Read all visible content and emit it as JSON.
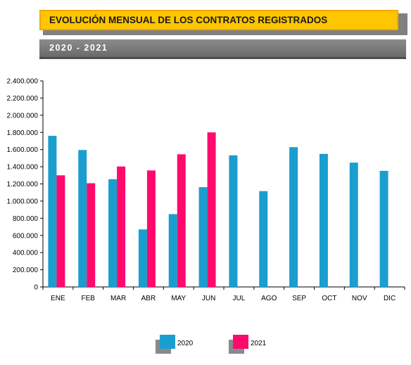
{
  "header": {
    "title": "EVOLUCIÓN MENSUAL DE LOS CONTRATOS REGISTRADOS",
    "subtitle": "2020 - 2021"
  },
  "chart_data": {
    "type": "bar",
    "categories": [
      "ENE",
      "FEB",
      "MAR",
      "ABR",
      "MAY",
      "JUN",
      "JUL",
      "AGO",
      "SEP",
      "OCT",
      "NOV",
      "DIC"
    ],
    "series": [
      {
        "name": "2020",
        "color": "#1a9ecf",
        "values": [
          1760000,
          1595000,
          1255000,
          670000,
          848000,
          1162000,
          1533000,
          1116000,
          1628000,
          1550000,
          1448000,
          1352000
        ]
      },
      {
        "name": "2021",
        "color": "#ff0a6c",
        "values": [
          1300000,
          1208000,
          1403000,
          1357000,
          1545000,
          1800000,
          null,
          null,
          null,
          null,
          null,
          null
        ]
      }
    ],
    "ylim": [
      0,
      2400000
    ],
    "yticks": [
      "0",
      "200.000",
      "400.000",
      "600.000",
      "800.000",
      "1.000.000",
      "1.200.000",
      "1.400.000",
      "1.600.000",
      "1.800.000",
      "2.000.000",
      "2.200.000",
      "2.400.000"
    ],
    "grid": false,
    "legend": "bottom-center"
  }
}
